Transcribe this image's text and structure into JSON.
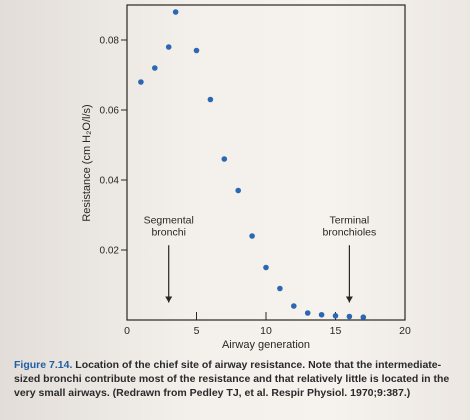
{
  "chart_data": {
    "type": "scatter",
    "xlabel": "Airway generation",
    "ylabel": "Resistance (cm H₂O/l/s)",
    "xlim": [
      0,
      20
    ],
    "ylim": [
      0,
      0.09
    ],
    "x_ticks": [
      0,
      5,
      10,
      15,
      20
    ],
    "x_tick_labels": [
      "0",
      "5",
      "10",
      "15",
      "20"
    ],
    "y_ticks": [
      0.02,
      0.04,
      0.06,
      0.08
    ],
    "y_tick_labels": [
      "0.02",
      "0.04",
      "0.06",
      "0.08"
    ],
    "grid": false,
    "marker_color": "#2c67b3",
    "points": [
      {
        "x": 1,
        "y": 0.068
      },
      {
        "x": 2,
        "y": 0.072
      },
      {
        "x": 3,
        "y": 0.078
      },
      {
        "x": 3.5,
        "y": 0.088
      },
      {
        "x": 5,
        "y": 0.077
      },
      {
        "x": 6,
        "y": 0.063
      },
      {
        "x": 7,
        "y": 0.046
      },
      {
        "x": 8,
        "y": 0.037
      },
      {
        "x": 9,
        "y": 0.024
      },
      {
        "x": 10,
        "y": 0.015
      },
      {
        "x": 11,
        "y": 0.009
      },
      {
        "x": 12,
        "y": 0.004
      },
      {
        "x": 13,
        "y": 0.002
      },
      {
        "x": 14,
        "y": 0.0015
      },
      {
        "x": 15,
        "y": 0.0012
      },
      {
        "x": 16,
        "y": 0.001
      },
      {
        "x": 17,
        "y": 0.0008
      }
    ],
    "annotations": [
      {
        "lines": [
          "Segmental",
          "bronchi"
        ],
        "x": 3,
        "y": 0.0225,
        "arrow_to_y": 0.005
      },
      {
        "lines": [
          "Terminal",
          "bronchioles"
        ],
        "x": 16,
        "y": 0.0225,
        "arrow_to_y": 0.005
      }
    ]
  },
  "caption": {
    "label": "Figure 7.14.",
    "text": "Location of the chief site of airway resistance. Note that the intermediate-sized bronchi contribute most of the resistance and that relatively little is located in the very small airways. (Redrawn from Pedley TJ, et al. Respir Physiol. 1970;9:387.)"
  }
}
